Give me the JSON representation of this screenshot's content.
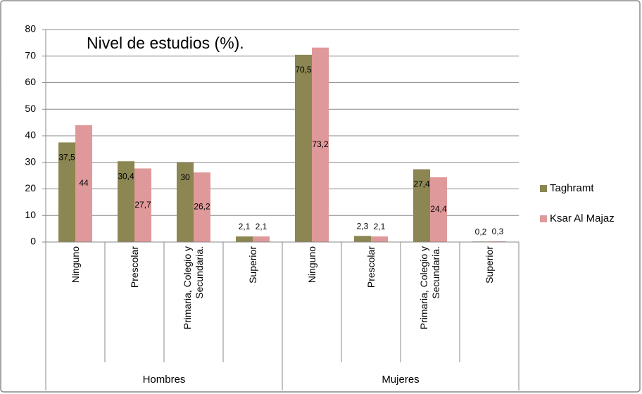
{
  "chart_data": {
    "type": "bar",
    "title": "Nivel de estudios (%).",
    "categories": [
      "Ninguno",
      "Prescolar",
      "Primaria, Colegio y Secundaria.",
      "Superior",
      "Ninguno",
      "Prescolar",
      "Primaria, Colegio y Secundaria.",
      "Superior"
    ],
    "groups": [
      "Hombres",
      "Mujeres"
    ],
    "series": [
      {
        "name": "Taghramt",
        "color": "#8b8652",
        "values": [
          37.5,
          30.4,
          30,
          2.1,
          70.5,
          2.3,
          27.4,
          0.2
        ],
        "value_labels": [
          "37,5",
          "30,4",
          "30",
          "2,1",
          "70,5",
          "2,3",
          "27,4",
          "0,2"
        ]
      },
      {
        "name": "Ksar Al Majaz",
        "color": "#e0999a",
        "values": [
          44,
          27.7,
          26.2,
          2.1,
          73.2,
          2.1,
          24.4,
          0.3
        ],
        "value_labels": [
          "44",
          "27,7",
          "26,2",
          "2,1",
          "73,2",
          "2,1",
          "24,4",
          "0,3"
        ]
      }
    ],
    "ylim": [
      0,
      80
    ],
    "yticks": [
      0,
      10,
      20,
      30,
      40,
      50,
      60,
      70,
      80
    ],
    "grid": true,
    "legend": "right"
  }
}
